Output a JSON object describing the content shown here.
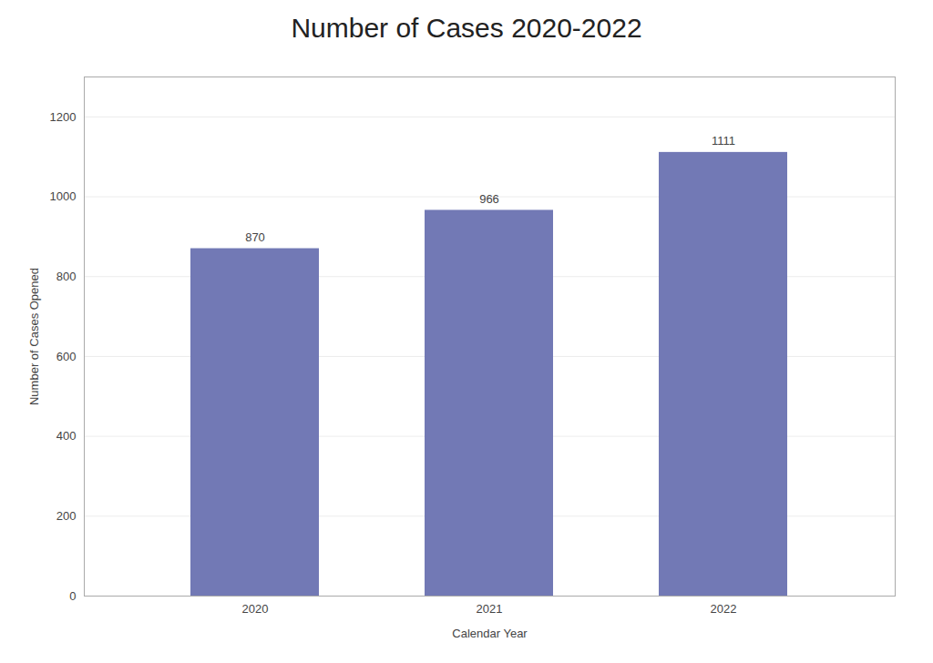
{
  "chart_data": {
    "type": "bar",
    "title": "Number of Cases 2020-2022",
    "xlabel": "Calendar Year",
    "ylabel": "Number of Cases Opened",
    "categories": [
      "2020",
      "2021",
      "2022"
    ],
    "values": [
      870,
      966,
      1111
    ],
    "color": "#7279b5",
    "ylim": [
      0,
      1300
    ],
    "yticks": [
      0,
      200,
      400,
      600,
      800,
      1000,
      1200
    ],
    "grid": true,
    "data_labels": true
  }
}
